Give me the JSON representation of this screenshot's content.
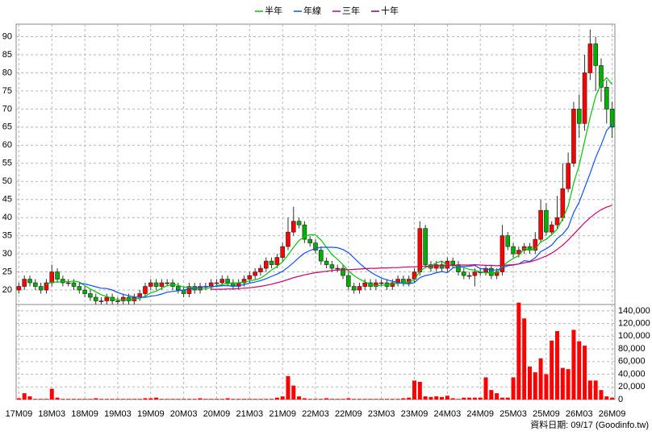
{
  "chart_data": {
    "type": "candlestick",
    "categories": [
      "17M09",
      null,
      null,
      null,
      null,
      null,
      "18M03",
      null,
      null,
      null,
      null,
      null,
      "18M09",
      null,
      null,
      null,
      null,
      null,
      "19M03",
      null,
      null,
      null,
      null,
      null,
      "19M09",
      null,
      null,
      null,
      null,
      null,
      "20M03",
      null,
      null,
      null,
      null,
      null,
      "20M09",
      null,
      null,
      null,
      null,
      null,
      "21M03",
      null,
      null,
      null,
      null,
      null,
      "21M09",
      null,
      null,
      null,
      null,
      null,
      "22M03",
      null,
      null,
      null,
      null,
      null,
      "22M09",
      null,
      null,
      null,
      null,
      null,
      "23M03",
      null,
      null,
      null,
      null,
      null,
      "23M09",
      null,
      null,
      null,
      null,
      null,
      "24M03",
      null,
      null,
      null,
      null,
      null,
      "24M09",
      null,
      null,
      null,
      null,
      null,
      "25M03",
      null,
      null,
      null,
      null,
      null,
      "25M09",
      null,
      null,
      null,
      null,
      null,
      "26M03",
      null,
      null,
      null,
      null,
      null,
      "26M09"
    ],
    "open": [
      20,
      21,
      23,
      22,
      21,
      20,
      22,
      25,
      23,
      22,
      22,
      21,
      20,
      19,
      18,
      17,
      17,
      18,
      17,
      17,
      18,
      17,
      18,
      19,
      21,
      22,
      21,
      22,
      22,
      21,
      20,
      19,
      21,
      20,
      21,
      21,
      22,
      22,
      23,
      22,
      21,
      22,
      23,
      24,
      25,
      26,
      28,
      27,
      29,
      32,
      36,
      39,
      38,
      34,
      33,
      31,
      28,
      27,
      26,
      26,
      24,
      21,
      20,
      21,
      22,
      21,
      22,
      22,
      21,
      22,
      23,
      22,
      23,
      25,
      37,
      27,
      26,
      27,
      26,
      28,
      27,
      25,
      24,
      24,
      25,
      25,
      26,
      24,
      25,
      35,
      32,
      30,
      31,
      32,
      31,
      34,
      42,
      36,
      38,
      40,
      48,
      55,
      70,
      66,
      80,
      88,
      82,
      76,
      70
    ],
    "high": [
      22,
      24,
      24,
      23,
      22,
      23,
      27,
      26,
      24,
      23,
      23,
      22,
      21,
      20,
      19,
      18,
      19,
      19,
      18,
      19,
      19,
      19,
      20,
      22,
      23,
      23,
      23,
      23,
      23,
      22,
      21,
      22,
      22,
      22,
      22,
      23,
      23,
      24,
      24,
      23,
      23,
      24,
      25,
      26,
      27,
      29,
      29,
      30,
      33,
      40,
      43,
      40,
      39,
      35,
      34,
      32,
      29,
      28,
      27,
      27,
      25,
      22,
      22,
      23,
      23,
      23,
      23,
      23,
      23,
      24,
      24,
      24,
      26,
      39,
      38,
      28,
      28,
      28,
      29,
      29,
      28,
      26,
      25,
      26,
      26,
      27,
      27,
      26,
      38,
      36,
      33,
      32,
      33,
      33,
      36,
      45,
      44,
      39,
      46,
      55,
      58,
      72,
      74,
      85,
      92,
      90,
      84,
      78,
      72
    ],
    "low": [
      19,
      20,
      21,
      20,
      19,
      19,
      21,
      22,
      21,
      21,
      20,
      19,
      18,
      17,
      16,
      16,
      16,
      16,
      16,
      16,
      16,
      16,
      17,
      18,
      20,
      20,
      20,
      21,
      20,
      19,
      18,
      18,
      19,
      19,
      20,
      20,
      21,
      21,
      21,
      20,
      20,
      21,
      22,
      23,
      24,
      25,
      26,
      26,
      28,
      31,
      35,
      37,
      33,
      32,
      30,
      27,
      26,
      25,
      25,
      23,
      20,
      19,
      19,
      20,
      20,
      20,
      21,
      20,
      20,
      21,
      21,
      21,
      22,
      24,
      26,
      25,
      25,
      25,
      25,
      26,
      24,
      23,
      23,
      21,
      24,
      24,
      23,
      23,
      24,
      31,
      29,
      29,
      30,
      30,
      30,
      33,
      35,
      35,
      37,
      39,
      47,
      54,
      62,
      64,
      78,
      75,
      72,
      66,
      62
    ],
    "close": [
      21,
      23,
      22,
      21,
      20,
      22,
      25,
      23,
      22,
      22,
      21,
      20,
      19,
      18,
      17,
      17,
      18,
      17,
      17,
      18,
      17,
      18,
      19,
      21,
      22,
      21,
      22,
      22,
      21,
      20,
      19,
      21,
      20,
      21,
      21,
      22,
      22,
      23,
      22,
      21,
      22,
      23,
      24,
      25,
      26,
      28,
      27,
      29,
      32,
      36,
      39,
      38,
      34,
      33,
      31,
      28,
      27,
      26,
      26,
      24,
      21,
      20,
      21,
      22,
      21,
      22,
      22,
      21,
      22,
      23,
      22,
      23,
      25,
      37,
      27,
      26,
      27,
      26,
      28,
      27,
      25,
      24,
      24,
      25,
      25,
      26,
      24,
      25,
      35,
      32,
      30,
      31,
      32,
      31,
      34,
      42,
      36,
      38,
      40,
      48,
      55,
      70,
      66,
      80,
      88,
      82,
      76,
      70,
      65
    ],
    "up_color": "#ff0000",
    "down_color": "#00b000",
    "ylim": [
      16,
      93
    ],
    "yticks": [
      20,
      25,
      30,
      35,
      40,
      45,
      50,
      55,
      60,
      65,
      70,
      75,
      80,
      85,
      90
    ],
    "grid": true,
    "series": [
      {
        "name": "半年",
        "color": "#00c800",
        "values": [
          null,
          null,
          null,
          null,
          null,
          21.5,
          22.2,
          22.2,
          22.3,
          22.3,
          22.5,
          22.2,
          21.2,
          20.3,
          19.5,
          18.7,
          18.2,
          17.7,
          17.3,
          17.3,
          17.3,
          17.5,
          17.7,
          18.3,
          19.2,
          19.7,
          20.5,
          21.2,
          21.5,
          21.3,
          20.8,
          20.8,
          20.5,
          20.3,
          20.3,
          20.7,
          21.2,
          21.5,
          21.8,
          21.8,
          22,
          22.2,
          22.5,
          22.8,
          23.3,
          24.3,
          25.5,
          26.5,
          27.8,
          29.7,
          31.8,
          33.7,
          34.8,
          35.3,
          35.2,
          33.8,
          31.8,
          29.8,
          28.5,
          27,
          25.3,
          24,
          23,
          22.3,
          21.5,
          21.2,
          21.3,
          21.5,
          21.7,
          21.8,
          22,
          22.2,
          22.7,
          25.3,
          26.2,
          26.7,
          27.5,
          28,
          26.8,
          26.8,
          26.5,
          26.2,
          25.7,
          25.5,
          25,
          24.8,
          24.7,
          24.8,
          26.5,
          27.8,
          28.7,
          29.5,
          31.5,
          31,
          31.3,
          33.3,
          34,
          35.3,
          36.8,
          39.7,
          43.2,
          49.5,
          54.5,
          61.2,
          67.8,
          73.5,
          77,
          78.7,
          76.8
        ]
      },
      {
        "name": "年線",
        "color": "#1050ff",
        "values": [
          null,
          null,
          null,
          null,
          null,
          null,
          null,
          null,
          null,
          null,
          null,
          21.8,
          21.7,
          21.3,
          20.9,
          20.5,
          20.4,
          20,
          19.3,
          18.8,
          18.4,
          18.1,
          18,
          18,
          18.3,
          18.5,
          18.9,
          19.4,
          19.6,
          19.8,
          20,
          20.3,
          20.5,
          20.8,
          20.9,
          21,
          21,
          21.2,
          21.2,
          21.1,
          21.2,
          21.5,
          21.9,
          22.2,
          22.6,
          23.1,
          23.8,
          24.4,
          25.2,
          26.3,
          27.6,
          29,
          30.2,
          30.9,
          31.5,
          31.8,
          31.8,
          31.8,
          31.7,
          31.2,
          30.3,
          28.9,
          27.4,
          26.1,
          25,
          24.1,
          23.3,
          22.8,
          22.4,
          22.1,
          21.8,
          21.7,
          22,
          23.4,
          24,
          24.3,
          24.8,
          25.1,
          24.8,
          26.1,
          26.4,
          26.5,
          26.6,
          26.8,
          25.9,
          25.8,
          25.6,
          25.5,
          26.1,
          26.7,
          26.9,
          27.2,
          28.1,
          27.9,
          28.9,
          30.6,
          31.4,
          32.4,
          34.2,
          35.4,
          37.3,
          41.4,
          44.3,
          48.3,
          52.3,
          56.6,
          60.1,
          64.1,
          65.7
        ]
      },
      {
        "name": "三年",
        "color": "#d0006a",
        "values": [
          null,
          null,
          null,
          null,
          null,
          null,
          null,
          null,
          null,
          null,
          null,
          null,
          null,
          null,
          null,
          null,
          null,
          null,
          null,
          null,
          null,
          null,
          null,
          null,
          null,
          null,
          null,
          null,
          null,
          null,
          null,
          null,
          null,
          null,
          null,
          20.2,
          20.2,
          20.2,
          20.3,
          20.3,
          20.4,
          20.5,
          20.6,
          20.8,
          21,
          21.3,
          21.6,
          22,
          22.4,
          22.9,
          23.4,
          23.8,
          24.2,
          24.5,
          24.8,
          25,
          25.2,
          25.4,
          25.5,
          25.6,
          25.6,
          25.7,
          25.8,
          25.9,
          26,
          26,
          26.1,
          26.1,
          26.2,
          26.2,
          26.3,
          26.4,
          26.4,
          26.5,
          26.6,
          26.6,
          26.7,
          26.7,
          26.8,
          26.8,
          26.9,
          26.9,
          26.9,
          27,
          26.9,
          26.8,
          26.8,
          26.7,
          26.8,
          26.9,
          27,
          27.2,
          27.5,
          27.8,
          28.2,
          28.8,
          29.4,
          30.2,
          31.2,
          32.4,
          33.8,
          35.4,
          37,
          38.6,
          40,
          41.2,
          42.2,
          42.9,
          43.4
        ]
      },
      {
        "name": "十年",
        "color": "#800080",
        "values": [
          null,
          null,
          null,
          null,
          null,
          null,
          null,
          null,
          null,
          null,
          null,
          null,
          null,
          null,
          null,
          null,
          null,
          null,
          null,
          null,
          null,
          null,
          null,
          null,
          null,
          null,
          null,
          null,
          null,
          null,
          null,
          null,
          null,
          null,
          null,
          null,
          null,
          null,
          null,
          null,
          null,
          null,
          null,
          null,
          null,
          null,
          null,
          null,
          null,
          null,
          null,
          null,
          null,
          null,
          null,
          null,
          null,
          null,
          null,
          null,
          null,
          null,
          null,
          null,
          null,
          null,
          null,
          null,
          null,
          null,
          null,
          null,
          null,
          null,
          null,
          null,
          null,
          null,
          null,
          null,
          null,
          null,
          null,
          null,
          null,
          null,
          null,
          null,
          null,
          null,
          null,
          null,
          null,
          null,
          null,
          null,
          null,
          null,
          null,
          null,
          null,
          null,
          null,
          null,
          null,
          null,
          null,
          null,
          null
        ]
      }
    ],
    "volume": {
      "color": "#ff0000",
      "values": [
        2000,
        10000,
        5000,
        1000,
        1000,
        1000,
        17000,
        3000,
        1000,
        1000,
        1000,
        1000,
        1000,
        1000,
        2000,
        1000,
        1000,
        1000,
        1000,
        1000,
        1000,
        1000,
        1000,
        2000,
        2000,
        3000,
        1000,
        1000,
        1000,
        1000,
        1000,
        1000,
        1000,
        2000,
        1000,
        1000,
        1000,
        1000,
        2000,
        1000,
        1000,
        1000,
        1000,
        1000,
        1000,
        1000,
        1000,
        3000,
        5000,
        37000,
        22000,
        5000,
        2000,
        1000,
        1000,
        1000,
        2000,
        1000,
        1000,
        1000,
        2000,
        1000,
        1000,
        1000,
        1000,
        1000,
        1000,
        1000,
        1000,
        1000,
        2000,
        3000,
        30000,
        28000,
        5000,
        4000,
        5000,
        4000,
        6000,
        2000,
        1000,
        3000,
        3000,
        3000,
        3000,
        35000,
        15000,
        10000,
        3000,
        3000,
        35000,
        153000,
        128000,
        52000,
        43000,
        65000,
        40000,
        93000,
        108000,
        50000,
        48000,
        110000,
        92000,
        85000,
        30000,
        30000,
        15000,
        5000,
        3000
      ],
      "ylim": [
        0,
        150000
      ],
      "yticks": [
        0,
        {
          "value": 20000,
          "label": "20,000"
        },
        {
          "value": 40000,
          "label": "40,000"
        },
        {
          "value": 60000,
          "label": "60,000"
        },
        {
          "value": 80000,
          "label": "80,000"
        },
        {
          "value": 100000,
          "label": "100,000"
        },
        {
          "value": 120000,
          "label": "120,000"
        },
        {
          "value": 140000,
          "label": "140,000"
        }
      ]
    },
    "footer": "資料日期: 09/17 (Goodinfo.tw)"
  }
}
